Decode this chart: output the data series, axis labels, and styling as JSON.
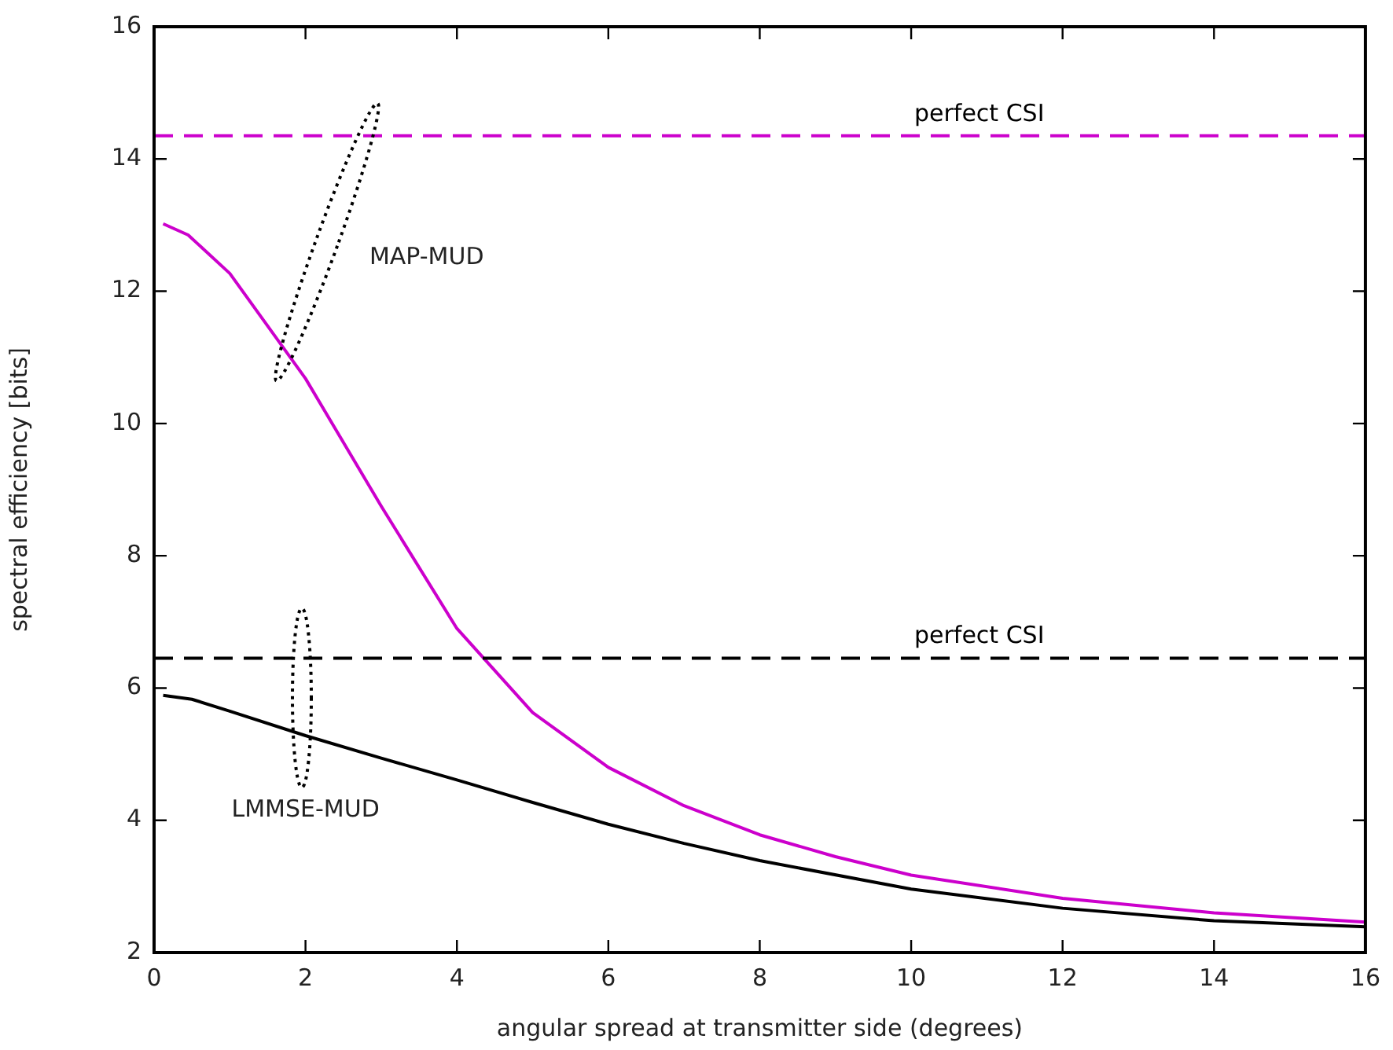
{
  "chart_data": {
    "type": "line",
    "xlabel": "angular spread at transmitter side (degrees)",
    "ylabel": "spectral efficiency [bits]",
    "xlim": [
      0,
      16
    ],
    "ylim": [
      2,
      16
    ],
    "xticks": [
      0,
      2,
      4,
      6,
      8,
      10,
      12,
      14,
      16
    ],
    "yticks": [
      2,
      4,
      6,
      8,
      10,
      12,
      14,
      16
    ],
    "grid": false,
    "legend": false,
    "marker": "none",
    "series": [
      {
        "color": "#cc00cc",
        "x": [
          0.12,
          0.45,
          1,
          2,
          3,
          4,
          5,
          6,
          7,
          8,
          9,
          10,
          12,
          14,
          16
        ],
        "values": [
          13.02,
          12.85,
          12.27,
          10.68,
          8.75,
          6.9,
          5.63,
          4.8,
          4.22,
          3.78,
          3.45,
          3.17,
          2.82,
          2.6,
          2.46
        ]
      },
      {
        "color": "#000000",
        "x": [
          0.12,
          0.5,
          1,
          2,
          3,
          4,
          5,
          6,
          7,
          8,
          10,
          12,
          14,
          16
        ],
        "values": [
          5.89,
          5.83,
          5.65,
          5.28,
          4.94,
          4.61,
          4.27,
          3.94,
          3.65,
          3.39,
          2.96,
          2.67,
          2.48,
          2.39
        ]
      }
    ],
    "ref_lines": [
      {
        "axis": "y",
        "value": 14.35,
        "label": "perfect CSI",
        "color": "#cc00cc",
        "line_style": "dashed"
      },
      {
        "axis": "y",
        "value": 6.45,
        "label": "perfect CSI",
        "color": "#000000",
        "line_style": "dashed"
      }
    ],
    "annotations": [
      "MAP-MUD",
      "LMMSE-MUD"
    ]
  }
}
